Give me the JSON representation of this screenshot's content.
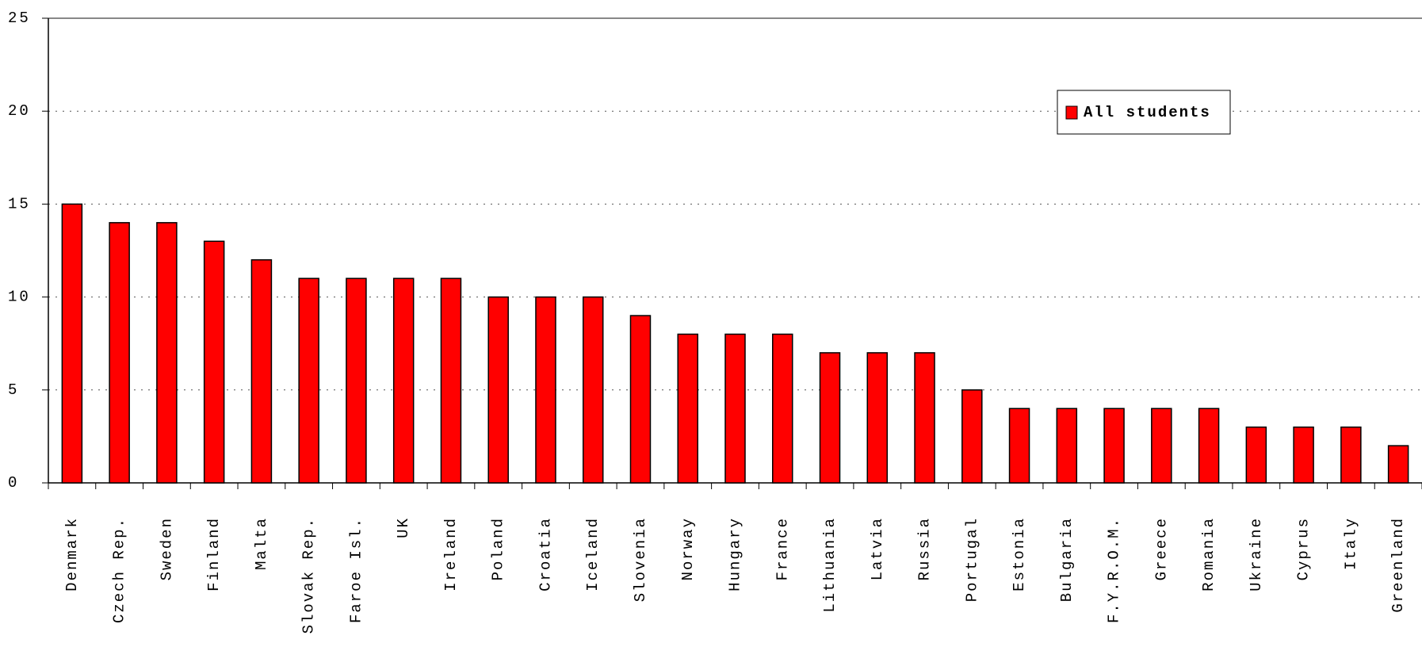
{
  "chart_data": {
    "type": "bar",
    "categories": [
      "Denmark",
      "Czech Rep.",
      "Sweden",
      "Finland",
      "Malta",
      "Slovak Rep.",
      "Faroe Isl.",
      "UK",
      "Ireland",
      "Poland",
      "Croatia",
      "Iceland",
      "Slovenia",
      "Norway",
      "Hungary",
      "France",
      "Lithuania",
      "Latvia",
      "Russia",
      "Portugal",
      "Estonia",
      "Bulgaria",
      "F.Y.R.O.M.",
      "Greece",
      "Romania",
      "Ukraine",
      "Cyprus",
      "Italy",
      "Greenland"
    ],
    "series": [
      {
        "name": "All students",
        "color": "#ff0000",
        "values": [
          15,
          14,
          14,
          13,
          12,
          11,
          11,
          11,
          11,
          10,
          10,
          10,
          9,
          8,
          8,
          8,
          7,
          7,
          7,
          5,
          4,
          4,
          4,
          4,
          4,
          3,
          3,
          3,
          2
        ]
      }
    ],
    "ylim": [
      0,
      25
    ],
    "yticks": [
      0,
      5,
      10,
      15,
      20,
      25
    ],
    "grid": true,
    "legend": "upper right"
  }
}
